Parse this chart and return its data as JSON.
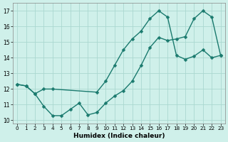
{
  "line1_x": [
    0,
    1,
    2,
    3,
    4,
    5,
    6,
    7,
    8,
    9,
    10,
    11,
    12,
    13,
    14,
    15,
    16,
    17,
    18,
    19,
    20,
    21,
    22,
    23
  ],
  "line1_y": [
    12.3,
    12.2,
    11.7,
    10.9,
    10.3,
    10.3,
    10.7,
    11.1,
    10.35,
    10.5,
    11.1,
    11.55,
    11.9,
    12.5,
    13.5,
    14.65,
    15.3,
    15.1,
    15.2,
    15.35,
    16.5,
    17.0,
    16.6,
    14.15
  ],
  "line2_x": [
    0,
    1,
    2,
    3,
    4,
    9,
    10,
    11,
    12,
    13,
    14,
    15,
    16,
    17,
    18,
    19,
    20,
    21,
    22,
    23
  ],
  "line2_y": [
    12.3,
    12.2,
    11.7,
    12.0,
    12.0,
    11.8,
    12.5,
    13.5,
    14.5,
    15.2,
    15.7,
    16.5,
    17.0,
    16.6,
    14.15,
    13.9,
    14.1,
    14.5,
    14.0,
    14.15
  ],
  "line_color": "#1a7a6e",
  "bg_color": "#cff0ea",
  "grid_color": "#aad8d0",
  "xlabel": "Humidex (Indice chaleur)",
  "ylim_min": 9.8,
  "ylim_max": 17.5,
  "xlim_min": -0.5,
  "xlim_max": 23.5,
  "yticks": [
    10,
    11,
    12,
    13,
    14,
    15,
    16,
    17
  ],
  "xticks": [
    0,
    1,
    2,
    3,
    4,
    5,
    6,
    7,
    8,
    9,
    10,
    11,
    12,
    13,
    14,
    15,
    16,
    17,
    18,
    19,
    20,
    21,
    22,
    23
  ],
  "marker_size": 2.5,
  "linewidth": 1.0,
  "tick_fontsize": 5.2,
  "xlabel_fontsize": 6.5
}
